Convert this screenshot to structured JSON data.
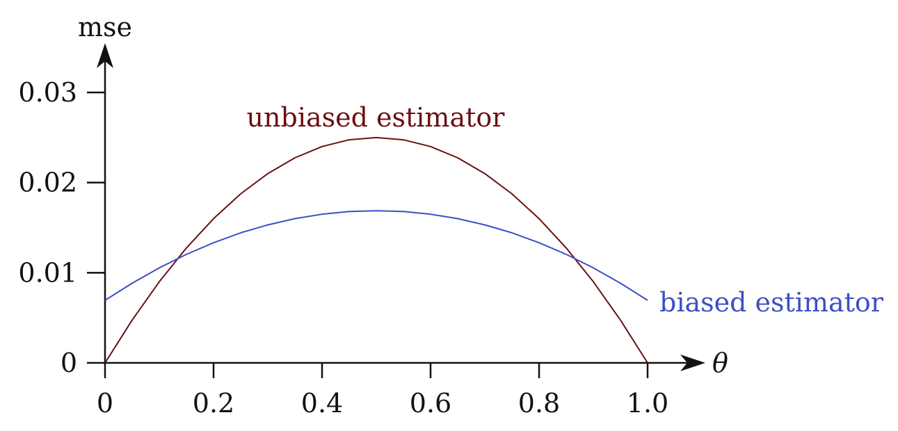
{
  "chart_data": {
    "type": "line",
    "xlabel": "θ",
    "ylabel": "mse",
    "xlim": [
      0,
      1.0
    ],
    "ylim": [
      0,
      0.03
    ],
    "x_ticks": [
      0,
      0.2,
      0.4,
      0.6,
      0.8,
      1.0
    ],
    "x_tick_labels": [
      "0",
      "0.2",
      "0.4",
      "0.6",
      "0.8",
      "1.0"
    ],
    "y_ticks": [
      0,
      0.01,
      0.02,
      0.03
    ],
    "y_tick_labels": [
      "0",
      "0.01",
      "0.02",
      "0.03"
    ],
    "grid": false,
    "series": [
      {
        "name": "unbiased estimator",
        "color": "#6b0f0f",
        "x": [
          0,
          0.05,
          0.1,
          0.15,
          0.2,
          0.25,
          0.3,
          0.35,
          0.4,
          0.45,
          0.5,
          0.55,
          0.6,
          0.65,
          0.7,
          0.75,
          0.8,
          0.85,
          0.9,
          0.95,
          1.0
        ],
        "y": [
          0,
          0.00475,
          0.009,
          0.01275,
          0.016,
          0.01875,
          0.021,
          0.02275,
          0.024,
          0.02475,
          0.025,
          0.02475,
          0.024,
          0.02275,
          0.021,
          0.01875,
          0.016,
          0.01275,
          0.009,
          0.00475,
          0
        ]
      },
      {
        "name": "biased estimator",
        "color": "#3b4fc4",
        "x": [
          0,
          0.05,
          0.1,
          0.15,
          0.2,
          0.25,
          0.3,
          0.35,
          0.4,
          0.45,
          0.5,
          0.55,
          0.6,
          0.65,
          0.7,
          0.75,
          0.8,
          0.85,
          0.9,
          0.95,
          1.0
        ],
        "y": [
          0.00694,
          0.00884,
          0.01054,
          0.01204,
          0.01333,
          0.01443,
          0.01531,
          0.016,
          0.01649,
          0.01679,
          0.01688,
          0.01679,
          0.01649,
          0.016,
          0.01531,
          0.01443,
          0.01333,
          0.01204,
          0.01054,
          0.00884,
          0.00694
        ]
      }
    ]
  }
}
